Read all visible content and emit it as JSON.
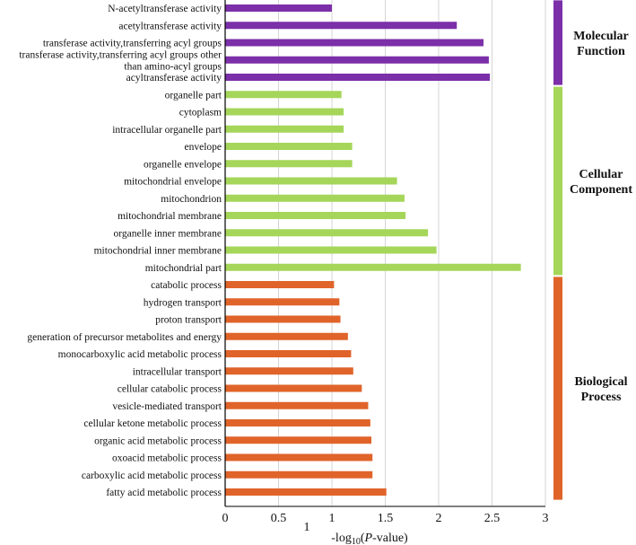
{
  "chart_data": {
    "type": "bar",
    "orientation": "horizontal",
    "xlabel_prefix": "-log",
    "xlabel_sub": "10",
    "xlabel_open": "(",
    "xlabel_var": "P",
    "xlabel_suffix": "-value)",
    "stray_label": "1",
    "xlim": [
      0,
      3
    ],
    "xticks": [
      0,
      0.5,
      1,
      1.5,
      2,
      2.5,
      3
    ],
    "grid": "vertical",
    "groups": [
      {
        "name_lines": [
          "Molecular",
          "Function"
        ],
        "color": "#7B2FA8",
        "items": [
          {
            "label": [
              "N-acetyltransferase activity"
            ],
            "value": 1.0
          },
          {
            "label": [
              "acetyltransferase activity"
            ],
            "value": 2.17
          },
          {
            "label": [
              "transferase activity,transferring acyl groups"
            ],
            "value": 2.42
          },
          {
            "label": [
              "transferase activity,transferring acyl groups other",
              "than amino-acyl groups"
            ],
            "value": 2.47
          },
          {
            "label": [
              "acyltransferase activity"
            ],
            "value": 2.48
          }
        ]
      },
      {
        "name_lines": [
          "Cellular",
          "Component"
        ],
        "color": "#A5D65A",
        "items": [
          {
            "label": [
              "organelle part"
            ],
            "value": 1.09
          },
          {
            "label": [
              "cytoplasm"
            ],
            "value": 1.11
          },
          {
            "label": [
              "intracellular organelle part"
            ],
            "value": 1.11
          },
          {
            "label": [
              "envelope"
            ],
            "value": 1.19
          },
          {
            "label": [
              "organelle envelope"
            ],
            "value": 1.19
          },
          {
            "label": [
              "mitochondrial envelope"
            ],
            "value": 1.61
          },
          {
            "label": [
              "mitochondrion"
            ],
            "value": 1.68
          },
          {
            "label": [
              "mitochondrial membrane"
            ],
            "value": 1.69
          },
          {
            "label": [
              "organelle inner membrane"
            ],
            "value": 1.9
          },
          {
            "label": [
              "mitochondrial inner membrane"
            ],
            "value": 1.98
          },
          {
            "label": [
              "mitochondrial part"
            ],
            "value": 2.77
          }
        ]
      },
      {
        "name_lines": [
          "Biological",
          "Process"
        ],
        "color": "#E0642A",
        "items": [
          {
            "label": [
              "catabolic process"
            ],
            "value": 1.02
          },
          {
            "label": [
              "hydrogen transport"
            ],
            "value": 1.07
          },
          {
            "label": [
              "proton transport"
            ],
            "value": 1.08
          },
          {
            "label": [
              "generation of precursor metabolites and energy"
            ],
            "value": 1.15
          },
          {
            "label": [
              "monocarboxylic acid metabolic process"
            ],
            "value": 1.18
          },
          {
            "label": [
              "intracellular transport"
            ],
            "value": 1.2
          },
          {
            "label": [
              "cellular catabolic process"
            ],
            "value": 1.28
          },
          {
            "label": [
              "vesicle-mediated transport"
            ],
            "value": 1.34
          },
          {
            "label": [
              "cellular ketone metabolic process"
            ],
            "value": 1.36
          },
          {
            "label": [
              "organic acid metabolic process"
            ],
            "value": 1.37
          },
          {
            "label": [
              "oxoacid metabolic process"
            ],
            "value": 1.38
          },
          {
            "label": [
              "carboxylic acid metabolic process"
            ],
            "value": 1.38
          },
          {
            "label": [
              "fatty acid metabolic process"
            ],
            "value": 1.51
          }
        ]
      }
    ]
  }
}
